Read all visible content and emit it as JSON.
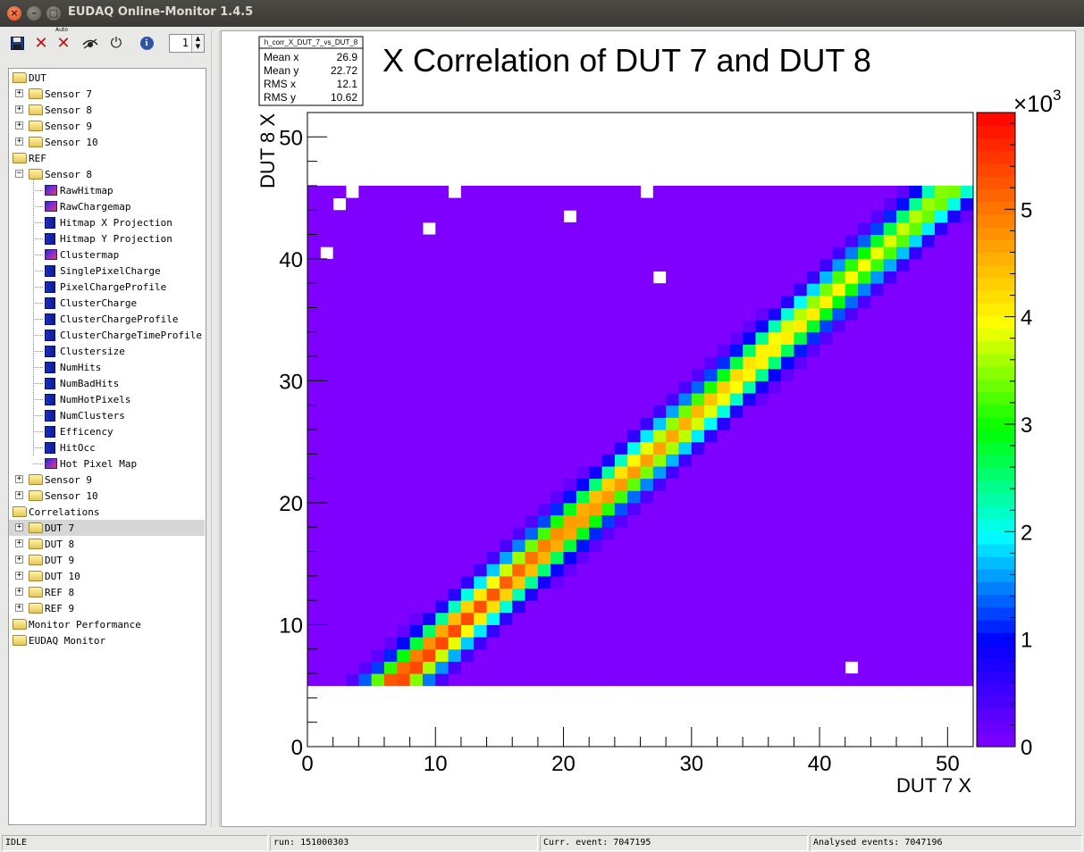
{
  "window": {
    "title": "EUDAQ Online-Monitor 1.4.5"
  },
  "toolbar": {
    "auto_label": "Auto",
    "spin_value": "1"
  },
  "tree": [
    {
      "label": "DUT",
      "icon": "folder-open",
      "level": 0,
      "expander": "",
      "selected": false
    },
    {
      "label": "Sensor 7",
      "icon": "folder",
      "level": 1,
      "expander": "+",
      "selected": false
    },
    {
      "label": "Sensor 8",
      "icon": "folder",
      "level": 1,
      "expander": "+",
      "selected": false
    },
    {
      "label": "Sensor 9",
      "icon": "folder",
      "level": 1,
      "expander": "+",
      "selected": false
    },
    {
      "label": "Sensor 10",
      "icon": "folder",
      "level": 1,
      "expander": "+",
      "selected": false
    },
    {
      "label": "REF",
      "icon": "folder-open",
      "level": 0,
      "expander": "",
      "selected": false
    },
    {
      "label": "Sensor 8",
      "icon": "folder-open",
      "level": 1,
      "expander": "-",
      "selected": false
    },
    {
      "label": "RawHitmap",
      "icon": "hist2d",
      "level": 2,
      "expander": "",
      "selected": false
    },
    {
      "label": "RawChargemap",
      "icon": "hist2d",
      "level": 2,
      "expander": "",
      "selected": false
    },
    {
      "label": "Hitmap X Projection",
      "icon": "hist1d",
      "level": 2,
      "expander": "",
      "selected": false
    },
    {
      "label": "Hitmap Y Projection",
      "icon": "hist1d",
      "level": 2,
      "expander": "",
      "selected": false
    },
    {
      "label": "Clustermap",
      "icon": "hist2d",
      "level": 2,
      "expander": "",
      "selected": false
    },
    {
      "label": "SinglePixelCharge",
      "icon": "hist1d",
      "level": 2,
      "expander": "",
      "selected": false
    },
    {
      "label": "PixelChargeProfile",
      "icon": "hist1d",
      "level": 2,
      "expander": "",
      "selected": false
    },
    {
      "label": "ClusterCharge",
      "icon": "hist1d",
      "level": 2,
      "expander": "",
      "selected": false
    },
    {
      "label": "ClusterChargeProfile",
      "icon": "hist1d",
      "level": 2,
      "expander": "",
      "selected": false
    },
    {
      "label": "ClusterChargeTimeProfile",
      "icon": "hist1d",
      "level": 2,
      "expander": "",
      "selected": false
    },
    {
      "label": "Clustersize",
      "icon": "hist1d",
      "level": 2,
      "expander": "",
      "selected": false
    },
    {
      "label": "NumHits",
      "icon": "hist1d",
      "level": 2,
      "expander": "",
      "selected": false
    },
    {
      "label": "NumBadHits",
      "icon": "hist1d",
      "level": 2,
      "expander": "",
      "selected": false
    },
    {
      "label": "NumHotPixels",
      "icon": "hist1d",
      "level": 2,
      "expander": "",
      "selected": false
    },
    {
      "label": "NumClusters",
      "icon": "hist1d",
      "level": 2,
      "expander": "",
      "selected": false
    },
    {
      "label": "Efficency",
      "icon": "hist1d",
      "level": 2,
      "expander": "",
      "selected": false
    },
    {
      "label": "HitOcc",
      "icon": "hist1d",
      "level": 2,
      "expander": "",
      "selected": false
    },
    {
      "label": "Hot Pixel Map",
      "icon": "hist2d",
      "level": 2,
      "expander": "",
      "selected": false
    },
    {
      "label": "Sensor 9",
      "icon": "folder",
      "level": 1,
      "expander": "+",
      "selected": false
    },
    {
      "label": "Sensor 10",
      "icon": "folder",
      "level": 1,
      "expander": "+",
      "selected": false
    },
    {
      "label": "Correlations",
      "icon": "folder-open",
      "level": 0,
      "expander": "",
      "selected": false
    },
    {
      "label": "DUT 7",
      "icon": "folder",
      "level": 1,
      "expander": "+",
      "selected": true
    },
    {
      "label": "DUT 8",
      "icon": "folder",
      "level": 1,
      "expander": "+",
      "selected": false
    },
    {
      "label": "DUT 9",
      "icon": "folder",
      "level": 1,
      "expander": "+",
      "selected": false
    },
    {
      "label": "DUT 10",
      "icon": "folder",
      "level": 1,
      "expander": "+",
      "selected": false
    },
    {
      "label": "REF 8",
      "icon": "folder",
      "level": 1,
      "expander": "+",
      "selected": false
    },
    {
      "label": "REF 9",
      "icon": "folder",
      "level": 1,
      "expander": "+",
      "selected": false
    },
    {
      "label": "Monitor Performance",
      "icon": "folder",
      "level": 0,
      "expander": "",
      "selected": false
    },
    {
      "label": "EUDAQ Monitor",
      "icon": "folder",
      "level": 0,
      "expander": "",
      "selected": false
    }
  ],
  "statusbar": {
    "state": "IDLE",
    "run": "run: 151000303",
    "curr_event": "Curr. event: 7047195",
    "analysed": "Analysed events: 7047196"
  },
  "chart_data": {
    "type": "heatmap",
    "title": "X Correlation of DUT 7 and DUT 8",
    "xlabel": "DUT 7 X",
    "ylabel": "DUT 8 X",
    "xlim": [
      0,
      52
    ],
    "ylim": [
      0,
      52
    ],
    "zlim": [
      0,
      5.9
    ],
    "z_exponent_label": "×10",
    "z_exponent": "3",
    "x_ticks": [
      0,
      10,
      20,
      30,
      40,
      50
    ],
    "y_ticks": [
      0,
      10,
      20,
      30,
      40,
      50
    ],
    "z_ticks": [
      0,
      1,
      2,
      3,
      4,
      5
    ],
    "colormap": [
      "#8000ff",
      "#0000ff",
      "#00ffff",
      "#00ff00",
      "#ffff00",
      "#ff8000",
      "#ff0000"
    ],
    "data_y_range": [
      5,
      46
    ],
    "band": {
      "slope": 1.0,
      "intercept_start": -1.5,
      "intercept_end": -4.5,
      "peak_at_low_end": 5.6,
      "peak_at_high_end": 3.6
    },
    "empty_bins": [
      [
        1.5,
        40.5
      ],
      [
        2.5,
        44.5
      ],
      [
        3.5,
        45.5
      ],
      [
        9.5,
        42.5
      ],
      [
        11.5,
        45.5
      ],
      [
        20.5,
        43.5
      ],
      [
        26.5,
        45.5
      ],
      [
        27.5,
        38.5
      ],
      [
        42.5,
        6.5
      ]
    ],
    "stats": {
      "name": "h_corr_X_DUT_7_vs_DUT_8",
      "entries": [
        {
          "label": "Mean x",
          "value": "26.9"
        },
        {
          "label": "Mean y",
          "value": "22.72"
        },
        {
          "label": "RMS x",
          "value": "12.1"
        },
        {
          "label": "RMS y",
          "value": "10.62"
        }
      ]
    }
  }
}
